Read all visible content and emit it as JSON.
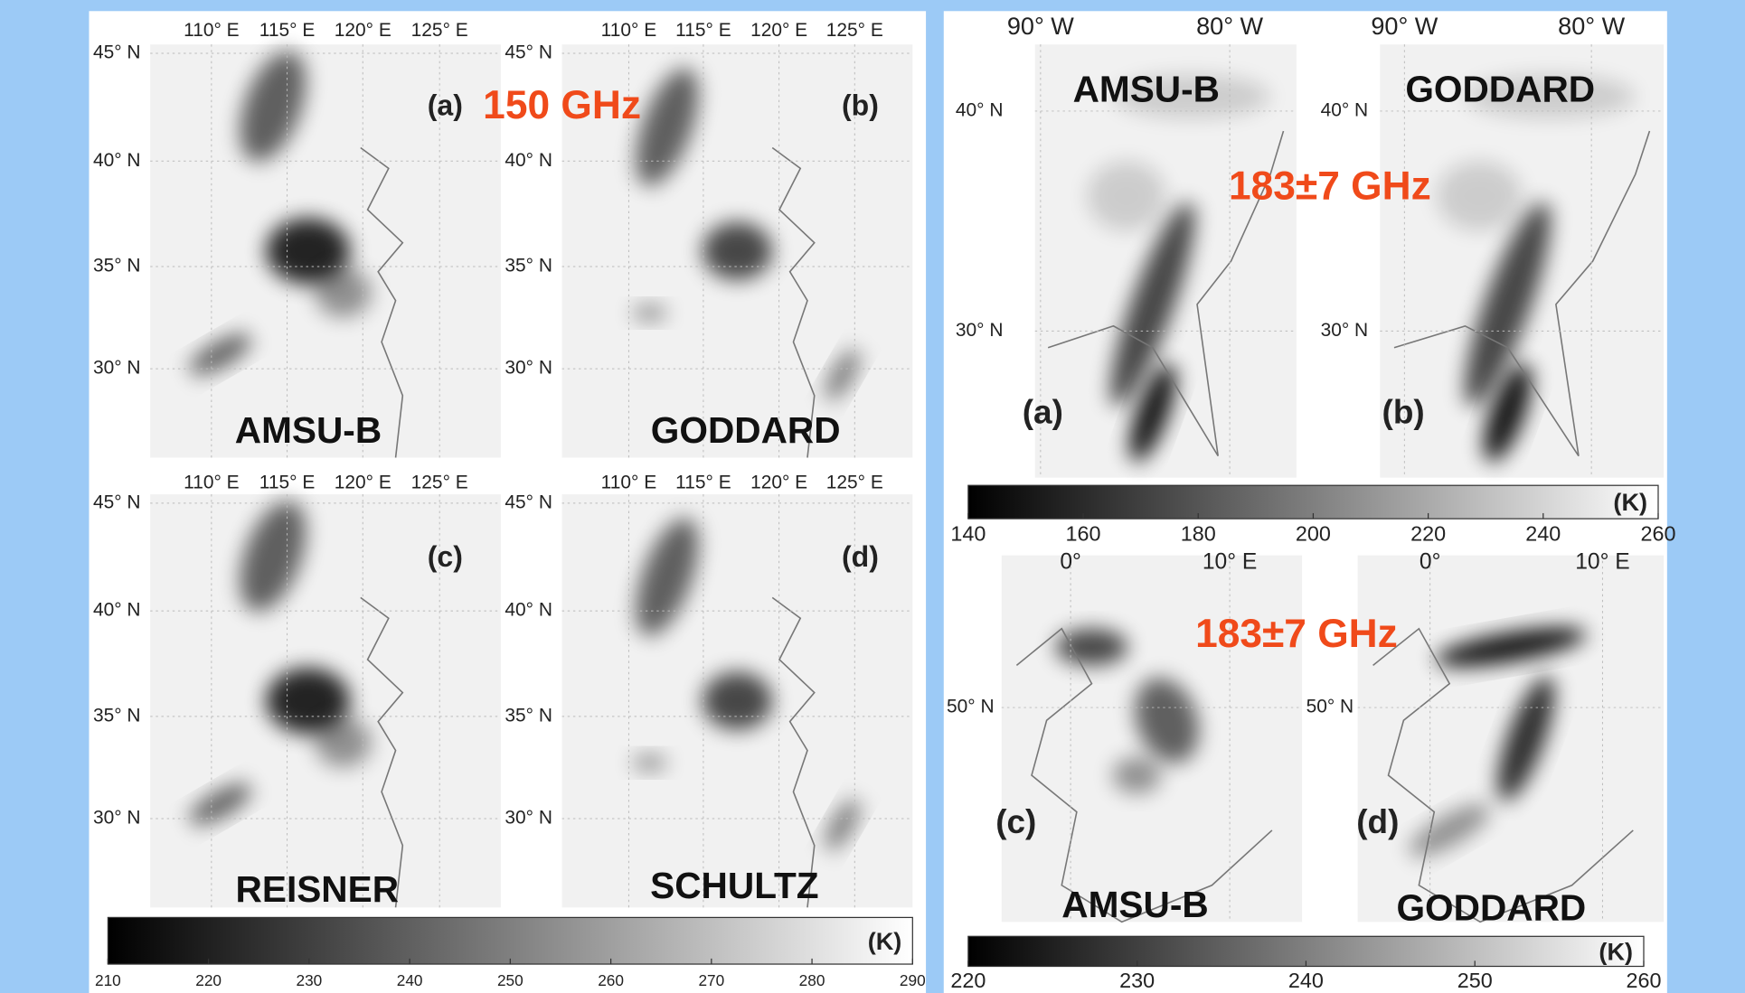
{
  "left": {
    "title": "150 GHz",
    "panels": [
      {
        "tag": "(a)",
        "model": "AMSU-B"
      },
      {
        "tag": "(b)",
        "model": "GODDARD"
      },
      {
        "tag": "(c)",
        "model": "REISNER"
      },
      {
        "tag": "(d)",
        "model": "SCHULTZ"
      }
    ],
    "lon_labels": [
      "110° E",
      "115° E",
      "120° E",
      "125° E"
    ],
    "lat_labels": [
      "45° N",
      "40° N",
      "35° N",
      "30° N"
    ],
    "colorbar": {
      "unit": "(K)",
      "ticks": [
        210,
        220,
        230,
        240,
        250,
        260,
        270,
        280,
        290
      ]
    }
  },
  "right_top": {
    "title": "183±7 GHz",
    "panels": [
      {
        "tag": "(a)",
        "model": "AMSU-B"
      },
      {
        "tag": "(b)",
        "model": "GODDARD"
      }
    ],
    "lon_labels": [
      "90° W",
      "80° W"
    ],
    "lat_labels": [
      "40° N",
      "30° N"
    ],
    "colorbar": {
      "unit": "(K)",
      "ticks": [
        140,
        160,
        180,
        200,
        220,
        240,
        260
      ]
    }
  },
  "right_bottom": {
    "title": "183±7 GHz",
    "panels": [
      {
        "tag": "(c)",
        "model": "AMSU-B"
      },
      {
        "tag": "(d)",
        "model": "GODDARD"
      }
    ],
    "lon_labels": [
      "0°",
      "10° E"
    ],
    "lat_labels": [
      "50° N"
    ],
    "colorbar": {
      "unit": "(K)",
      "ticks": [
        220,
        230,
        240,
        250,
        260
      ]
    }
  }
}
